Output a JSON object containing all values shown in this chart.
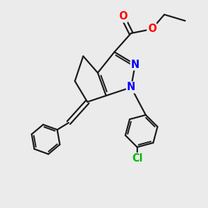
{
  "bg_color": "#ebebeb",
  "bond_color": "#1a1a1a",
  "bond_width": 1.6,
  "atom_colors": {
    "N": "#0000ff",
    "O": "#ff0000",
    "Cl": "#00bb00",
    "C": "#1a1a1a"
  },
  "font_size_atom": 10.5
}
